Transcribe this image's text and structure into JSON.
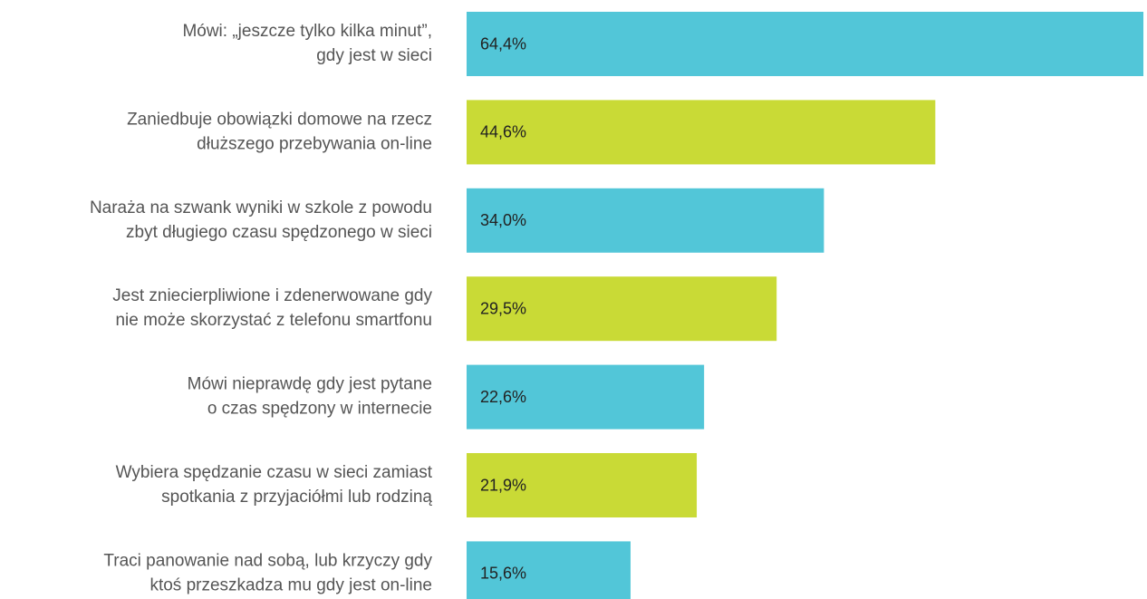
{
  "chart_data": {
    "type": "bar",
    "orientation": "horizontal",
    "categories": [
      [
        "Mówi: „jeszcze tylko kilka minut”,",
        "gdy jest w sieci"
      ],
      [
        "Zaniedbuje obowiązki domowe na rzecz",
        "dłuższego przebywania on-line"
      ],
      [
        "Naraża na szwank wyniki w szkole z powodu",
        "zbyt długiego czasu spędzonego w sieci"
      ],
      [
        "Jest zniecierpliwione i zdenerwowane gdy",
        "nie może skorzystać z telefonu smartfonu"
      ],
      [
        "Mówi nieprawdę gdy jest pytane",
        "o czas spędzony w internecie"
      ],
      [
        "Wybiera spędzanie czasu w sieci zamiast",
        "spotkania z przyjaciółmi lub rodziną"
      ],
      [
        "Traci panowanie nad sobą, lub krzyczy gdy",
        "ktoś przeszkadza mu gdy jest on-line"
      ]
    ],
    "values": [
      64.4,
      44.6,
      34.0,
      29.5,
      22.6,
      21.9,
      15.6
    ],
    "value_labels": [
      "64,4%",
      "44,6%",
      "34,0%",
      "29,5%",
      "22,6%",
      "21,9%",
      "15,6%"
    ],
    "colors": [
      "#52c6d8",
      "#c9da36",
      "#52c6d8",
      "#c9da36",
      "#52c6d8",
      "#c9da36",
      "#52c6d8"
    ]
  }
}
